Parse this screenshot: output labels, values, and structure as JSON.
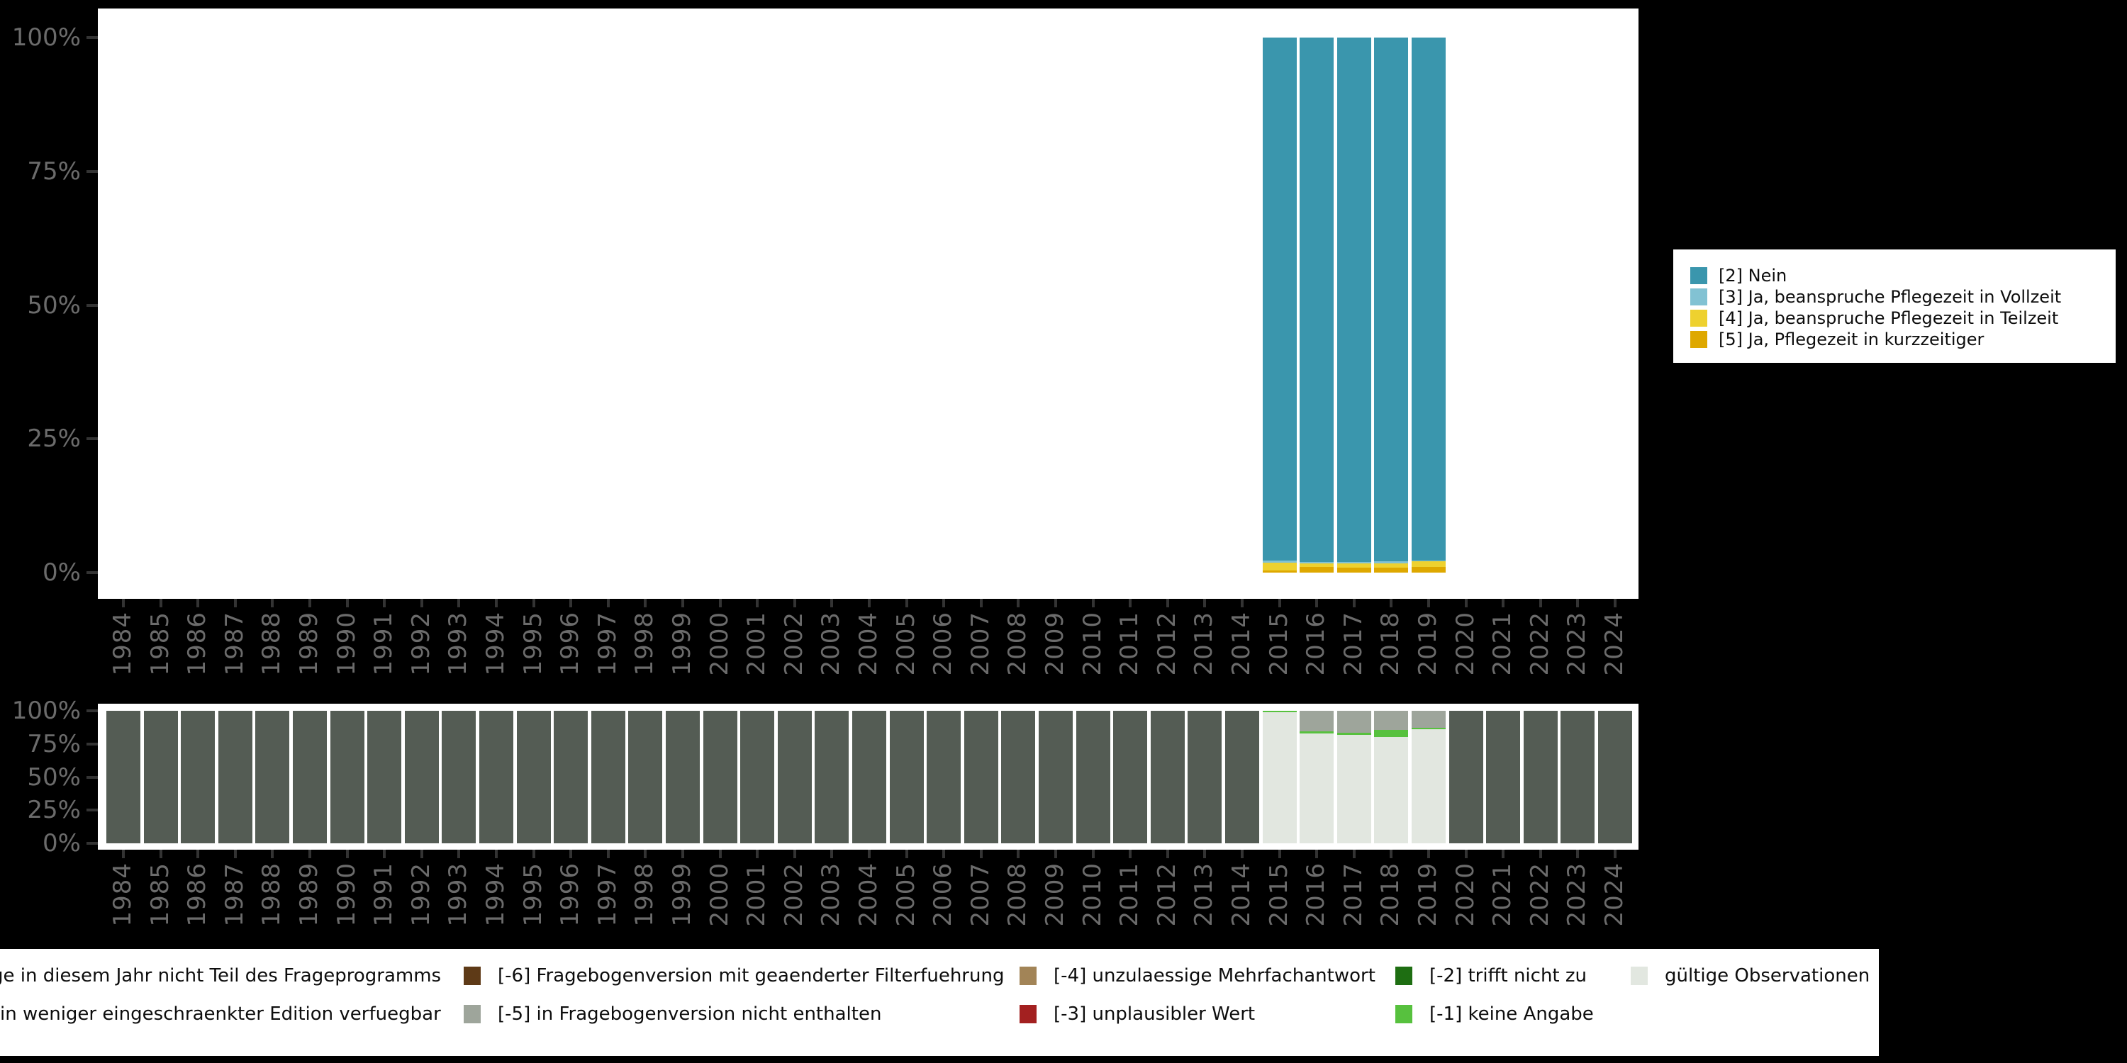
{
  "colors": {
    "background": "#000000",
    "panel": "#ffffff",
    "axis_label": "#6b6b6b",
    "tick_mark": "#333333",
    "legend_border": "#000000",
    "legend_background": "#ffffff"
  },
  "top_legend": {
    "items": [
      {
        "label": "[2] Nein",
        "color": "#3a96ad"
      },
      {
        "label": "[3] Ja, beanspruche Pflegezeit in Vollzeit",
        "color": "#82c2d3"
      },
      {
        "label": "[4] Ja, beanspruche Pflegezeit in Teilzeit",
        "color": "#eed12f"
      },
      {
        "label": "[5] Ja, Pflegezeit in kurzzeitiger",
        "color": "#dea800"
      }
    ]
  },
  "bottom_legend": {
    "rows": [
      {
        "cutoff_label": "ge in diesem Jahr nicht Teil des Frageprogramms",
        "items": [
          {
            "label": "[-6] Fragebogenversion mit geaenderter Filterfuehrung",
            "color": "#5e3a17"
          },
          {
            "label": "[-4] unzulaessige Mehrfachantwort",
            "color": "#a28457"
          },
          {
            "label": "[-2] trifft nicht zu",
            "color": "#1e6e12"
          },
          {
            "label": "gültige Observationen",
            "color": "#e2e7e0"
          }
        ]
      },
      {
        "cutoff_label": "in weniger eingeschraenkter Edition verfuegbar",
        "items": [
          {
            "label": "[-5] in Fragebogenversion nicht enthalten",
            "color": "#9ea59b"
          },
          {
            "label": "[-3] unplausibler Wert",
            "color": "#a32020"
          },
          {
            "label": "[-1] keine Angabe",
            "color": "#57c13e"
          }
        ]
      }
    ]
  },
  "chart_data": [
    {
      "type": "bar",
      "stacked": true,
      "title": "",
      "xlabel": "",
      "ylabel": "",
      "ylim": [
        0,
        100
      ],
      "grid": false,
      "legend_position": "right",
      "yticks": [
        "0%",
        "25%",
        "50%",
        "75%",
        "100%"
      ],
      "categories": [
        "1984",
        "1985",
        "1986",
        "1987",
        "1988",
        "1989",
        "1990",
        "1991",
        "1992",
        "1993",
        "1994",
        "1995",
        "1996",
        "1997",
        "1998",
        "1999",
        "2000",
        "2001",
        "2002",
        "2003",
        "2004",
        "2005",
        "2006",
        "2007",
        "2008",
        "2009",
        "2010",
        "2011",
        "2012",
        "2013",
        "2014",
        "2015",
        "2016",
        "2017",
        "2018",
        "2019",
        "2020",
        "2021",
        "2022",
        "2023",
        "2024"
      ],
      "series": [
        {
          "name": "[2] Nein",
          "color": "#3a96ad",
          "values": {
            "2015": 97.8,
            "2016": 98.0,
            "2017": 98.0,
            "2018": 97.9,
            "2019": 97.7
          }
        },
        {
          "name": "[3] Ja, beanspruche Pflegezeit in Vollzeit",
          "color": "#82c2d3",
          "values": {
            "2015": 0.4,
            "2016": 0.3,
            "2017": 0.3,
            "2018": 0.4,
            "2019": 0.2
          }
        },
        {
          "name": "[4] Ja, beanspruche Pflegezeit in Teilzeit",
          "color": "#eed12f",
          "values": {
            "2015": 1.4,
            "2016": 0.7,
            "2017": 0.8,
            "2018": 0.8,
            "2019": 1.1
          }
        },
        {
          "name": "[5] Ja, Pflegezeit in kurzzeitiger",
          "color": "#dea800",
          "values": {
            "2015": 0.4,
            "2016": 1.0,
            "2017": 0.9,
            "2018": 0.9,
            "2019": 1.0
          }
        }
      ]
    },
    {
      "type": "bar",
      "stacked": true,
      "title": "",
      "xlabel": "",
      "ylabel": "",
      "ylim": [
        0,
        100
      ],
      "grid": false,
      "legend_position": "bottom",
      "yticks": [
        "0%",
        "25%",
        "50%",
        "75%",
        "100%"
      ],
      "categories": [
        "1984",
        "1985",
        "1986",
        "1987",
        "1988",
        "1989",
        "1990",
        "1991",
        "1992",
        "1993",
        "1994",
        "1995",
        "1996",
        "1997",
        "1998",
        "1999",
        "2000",
        "2001",
        "2002",
        "2003",
        "2004",
        "2005",
        "2006",
        "2007",
        "2008",
        "2009",
        "2010",
        "2011",
        "2012",
        "2013",
        "2014",
        "2015",
        "2016",
        "2017",
        "2018",
        "2019",
        "2020",
        "2021",
        "2022",
        "2023",
        "2024"
      ],
      "series": [
        {
          "name": "Frage in diesem Jahr nicht Teil des Frageprogramms",
          "color": "#545c54",
          "values": {
            "1984": 100,
            "1985": 100,
            "1986": 100,
            "1987": 100,
            "1988": 100,
            "1989": 100,
            "1990": 100,
            "1991": 100,
            "1992": 100,
            "1993": 100,
            "1994": 100,
            "1995": 100,
            "1996": 100,
            "1997": 100,
            "1998": 100,
            "1999": 100,
            "2000": 100,
            "2001": 100,
            "2002": 100,
            "2003": 100,
            "2004": 100,
            "2005": 100,
            "2006": 100,
            "2007": 100,
            "2008": 100,
            "2009": 100,
            "2010": 100,
            "2011": 100,
            "2012": 100,
            "2013": 100,
            "2014": 100,
            "2020": 100,
            "2021": 100,
            "2022": 100,
            "2023": 100,
            "2024": 100
          }
        },
        {
          "name": "[-5] in Fragebogenversion nicht enthalten",
          "color": "#9ea59b",
          "values": {
            "2016": 15.5,
            "2017": 16.4,
            "2018": 14.6,
            "2019": 12.8
          }
        },
        {
          "name": "[-1] keine Angabe",
          "color": "#57c13e",
          "values": {
            "2015": 1.2,
            "2016": 1.8,
            "2017": 1.8,
            "2018": 5.3,
            "2019": 1.2
          }
        },
        {
          "name": "gültige Observationen",
          "color": "#e2e7e0",
          "values": {
            "2015": 98.8,
            "2016": 82.7,
            "2017": 81.8,
            "2018": 80.1,
            "2019": 86.0
          }
        }
      ]
    }
  ]
}
